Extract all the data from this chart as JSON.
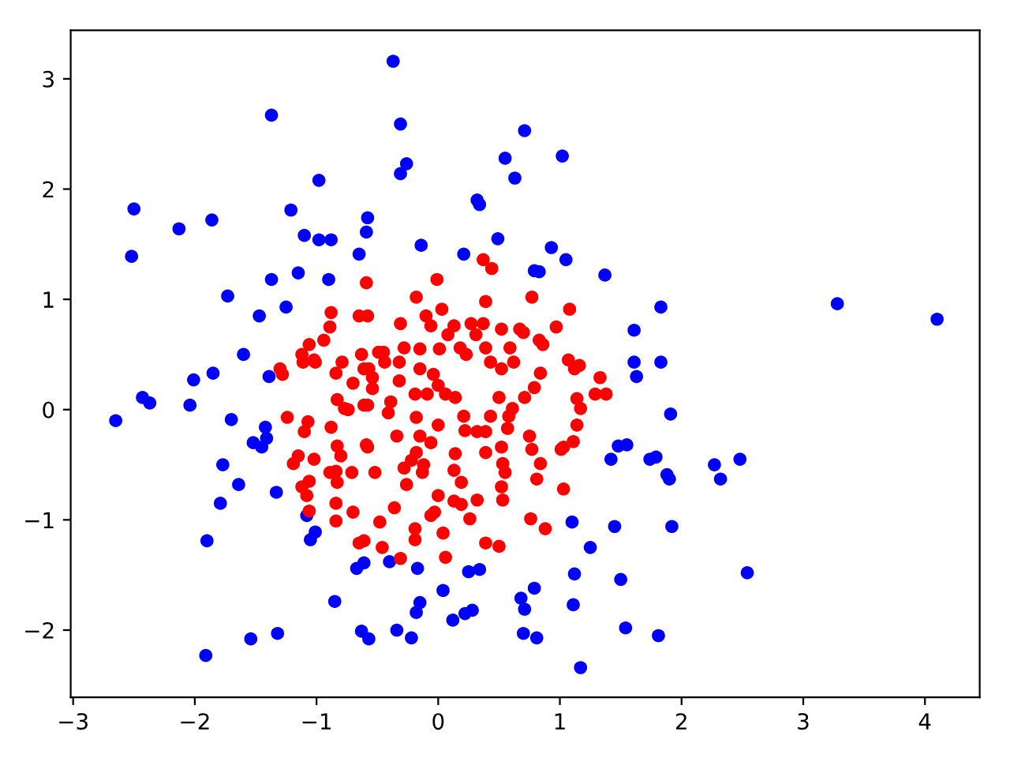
{
  "chart_data": {
    "type": "scatter",
    "marker": "circle",
    "xlim": [
      -3.02,
      4.45
    ],
    "ylim": [
      -2.61,
      3.44
    ],
    "xticks": [
      -3,
      -2,
      -1,
      0,
      1,
      2,
      3,
      4
    ],
    "yticks": [
      -2,
      -1,
      0,
      1,
      2,
      3
    ],
    "series": [
      {
        "color": "#0000ff",
        "x": [
          -0.37,
          -1.37,
          -0.31,
          -0.26,
          -0.31,
          -0.98,
          0.71,
          0.55,
          1.02,
          0.63,
          0.32,
          0.34,
          -0.14,
          0.21,
          0.49,
          0.93,
          1.05,
          0.79,
          0.83,
          1.37,
          1.83,
          1.61,
          1.61,
          1.83,
          1.63,
          1.91,
          -0.58,
          -0.59,
          -0.65,
          -2.5,
          -2.13,
          -1.86,
          -1.21,
          -1.1,
          -0.98,
          -0.88,
          -2.52,
          -1.37,
          -1.15,
          -0.9,
          -1.73,
          -1.47,
          -1.25,
          -1.6,
          3.28,
          4.1,
          -2.01,
          -1.85,
          -1.39,
          -2.43,
          -2.37,
          -2.04,
          -2.65,
          -1.7,
          -1.42,
          -1.41,
          -1.52,
          -1.45,
          -1.77,
          -1.64,
          -1.33,
          -1.79,
          -1.08,
          -1.01,
          -1.05,
          -1.9,
          -0.61,
          -0.67,
          -0.85,
          -1.32,
          -1.54,
          -0.63,
          -0.57,
          -1.91,
          -0.4,
          -0.17,
          0.04,
          0.25,
          0.34,
          -0.15,
          -0.18,
          0.12,
          0.22,
          0.28,
          -0.34,
          -0.22,
          0.79,
          0.68,
          0.71,
          0.7,
          0.81,
          1.1,
          1.25,
          1.45,
          1.12,
          1.5,
          1.11,
          1.54,
          1.81,
          1.17,
          1.42,
          1.48,
          1.55,
          1.74,
          1.79,
          1.88,
          1.9,
          1.92,
          2.27,
          2.32,
          2.48,
          2.54
        ],
        "values": [
          3.16,
          2.67,
          2.59,
          2.23,
          2.14,
          2.08,
          2.53,
          2.28,
          2.3,
          2.1,
          1.9,
          1.86,
          1.49,
          1.41,
          1.55,
          1.47,
          1.36,
          1.26,
          1.25,
          1.22,
          0.93,
          0.72,
          0.43,
          0.43,
          0.3,
          -0.04,
          1.74,
          1.61,
          1.41,
          1.82,
          1.64,
          1.72,
          1.81,
          1.58,
          1.54,
          1.54,
          1.39,
          1.18,
          1.24,
          1.18,
          1.03,
          0.85,
          0.93,
          0.5,
          0.96,
          0.82,
          0.27,
          0.33,
          0.3,
          0.11,
          0.06,
          0.04,
          -0.1,
          -0.09,
          -0.16,
          -0.26,
          -0.3,
          -0.34,
          -0.5,
          -0.68,
          -0.75,
          -0.85,
          -0.96,
          -1.11,
          -1.18,
          -1.19,
          -1.39,
          -1.44,
          -1.74,
          -2.03,
          -2.08,
          -2.01,
          -2.08,
          -2.23,
          -1.38,
          -1.44,
          -1.64,
          -1.47,
          -1.45,
          -1.75,
          -1.84,
          -1.91,
          -1.85,
          -1.82,
          -2.0,
          -2.07,
          -1.62,
          -1.71,
          -1.81,
          -2.03,
          -2.07,
          -1.02,
          -1.25,
          -1.06,
          -1.49,
          -1.54,
          -1.77,
          -1.98,
          -2.05,
          -2.34,
          -0.45,
          -0.33,
          -0.32,
          -0.45,
          -0.43,
          -0.59,
          -0.63,
          -1.06,
          -0.5,
          -0.63,
          -0.45,
          -1.48
        ]
      },
      {
        "color": "#ff0000",
        "x": [
          -0.59,
          -0.88,
          -0.65,
          -0.89,
          -0.94,
          -1.06,
          -1.12,
          -1.02,
          -0.79,
          -0.63,
          -0.49,
          -1.3,
          -0.01,
          -0.18,
          0.37,
          0.44,
          0.39,
          0.77,
          0.03,
          -0.1,
          -0.06,
          -0.31,
          1.08,
          0.97,
          0.13,
          0.27,
          0.37,
          0.52,
          0.67,
          0.7,
          0.08,
          0.31,
          0.39,
          0.83,
          0.86,
          0.18,
          0.23,
          0.59,
          0.01,
          -0.15,
          -0.28,
          -0.45,
          -0.58,
          -0.32,
          1.07,
          1.16,
          0.43,
          0.62,
          -0.57,
          -0.44,
          -0.32,
          -0.15,
          -0.04,
          0.0,
          -0.54,
          -0.39,
          -0.58,
          -0.19,
          -0.09,
          0.06,
          0.14,
          0.52,
          0.84,
          0.79,
          0.71,
          0.61,
          0.5,
          0.58,
          0.43,
          0.21,
          0.39,
          0.32,
          0.22,
          0.0,
          -0.18,
          -0.41,
          -0.34,
          -0.15,
          -0.06,
          -0.18,
          -0.22,
          -0.12,
          -0.28,
          -0.13,
          -0.26,
          -0.52,
          -0.58,
          0.14,
          0.13,
          0.19,
          0.39,
          0.52,
          0.57,
          0.75,
          0.77,
          0.84,
          0.81,
          0.53,
          0.55,
          0.52,
          0.53,
          0.32,
          0.26,
          0.19,
          0.13,
          0.0,
          -0.03,
          -0.06,
          0.04,
          -0.19,
          -0.19,
          -0.36,
          -0.48,
          -0.46,
          -0.31,
          -0.61,
          0.06,
          0.39,
          0.5,
          0.76,
          0.88,
          1.03,
          1.03,
          1.14,
          1.17,
          1.14,
          1.33,
          1.29,
          1.38,
          1.12,
          1.11,
          1.01,
          -1.28,
          -1.11,
          -1.01,
          -0.84,
          -0.7,
          -0.61,
          -0.54,
          -0.83,
          -0.77,
          -0.74,
          -0.61,
          -1.24,
          -1.07,
          -1.1,
          -0.88,
          -0.83,
          -0.8,
          -0.59,
          -1.15,
          -1.19,
          -1.02,
          -0.89,
          -0.84,
          -0.83,
          -0.71,
          -1.06,
          -1.12,
          -1.08,
          -1.06,
          -0.84,
          -0.84,
          -0.7,
          -0.65
        ],
        "values": [
          1.15,
          0.88,
          0.85,
          0.75,
          0.63,
          0.59,
          0.5,
          0.45,
          0.43,
          0.5,
          0.52,
          0.37,
          1.18,
          1.02,
          1.36,
          1.28,
          0.98,
          1.02,
          0.91,
          0.85,
          0.76,
          0.78,
          0.91,
          0.75,
          0.76,
          0.78,
          0.78,
          0.73,
          0.73,
          0.7,
          0.68,
          0.68,
          0.56,
          0.63,
          0.59,
          0.56,
          0.5,
          0.56,
          0.55,
          0.55,
          0.56,
          0.52,
          0.85,
          0.43,
          0.45,
          0.4,
          0.43,
          0.43,
          0.37,
          0.43,
          0.26,
          0.37,
          0.32,
          0.22,
          0.19,
          0.07,
          0.04,
          0.14,
          0.14,
          0.14,
          0.11,
          0.37,
          0.33,
          0.2,
          0.11,
          0.01,
          0.11,
          -0.06,
          -0.06,
          -0.06,
          -0.2,
          -0.2,
          -0.19,
          -0.14,
          -0.07,
          -0.03,
          -0.24,
          -0.24,
          -0.3,
          -0.39,
          -0.46,
          -0.5,
          -0.53,
          -0.57,
          -0.68,
          -0.57,
          -0.34,
          -0.4,
          -0.55,
          -0.66,
          -0.39,
          -0.34,
          -0.17,
          -0.24,
          -0.36,
          -0.49,
          -0.63,
          -0.49,
          -0.57,
          -0.7,
          -0.82,
          -0.82,
          -0.99,
          -0.86,
          -0.83,
          -0.78,
          -0.93,
          -0.96,
          -1.12,
          -1.08,
          -1.18,
          -0.89,
          -1.02,
          -1.25,
          -1.35,
          -1.19,
          -1.34,
          -1.21,
          -1.24,
          -0.99,
          -1.08,
          -0.72,
          -0.34,
          -0.14,
          0.01,
          0.1,
          0.29,
          0.14,
          0.14,
          0.37,
          -0.29,
          -0.36,
          0.32,
          0.43,
          0.43,
          0.33,
          0.24,
          0.37,
          0.29,
          0.09,
          0.01,
          0.0,
          0.04,
          -0.07,
          -0.11,
          -0.2,
          -0.16,
          -0.33,
          -0.42,
          -0.32,
          -0.42,
          -0.49,
          -0.45,
          -0.57,
          -0.56,
          -0.66,
          -0.57,
          -0.65,
          -0.7,
          -0.78,
          -0.92,
          -0.85,
          -1.01,
          -0.93,
          -1.21
        ]
      }
    ]
  }
}
